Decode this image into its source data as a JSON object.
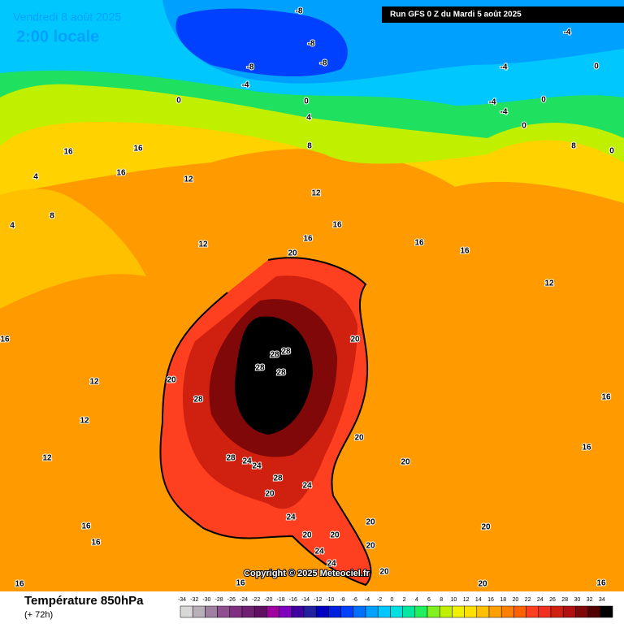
{
  "header": {
    "date": "Vendredi 8 août 2025",
    "time": "2:00 locale",
    "run": "Run GFS 0 Z du Mardi 5 août 2025"
  },
  "copyright": "Copyright © 2025 Meteociel.fr",
  "legend": {
    "title": "Température 850hPa",
    "subtitle": "(+ 72h)",
    "ticks": [
      -34,
      -32,
      -30,
      -28,
      -26,
      -24,
      -22,
      -20,
      -18,
      -16,
      -14,
      -12,
      -10,
      -8,
      -6,
      -4,
      -2,
      0,
      2,
      4,
      6,
      8,
      10,
      12,
      14,
      16,
      18,
      20,
      22,
      24,
      26,
      28,
      30,
      32,
      34
    ],
    "colors": [
      "#d8d8d8",
      "#b8b0b8",
      "#a080a0",
      "#905090",
      "#803080",
      "#702070",
      "#601060",
      "#a000a0",
      "#8000c0",
      "#4000a0",
      "#2020a0",
      "#0000c0",
      "#0020e0",
      "#0040ff",
      "#0070ff",
      "#00a0ff",
      "#00c8ff",
      "#00e0e0",
      "#00e8a0",
      "#20f060",
      "#80f020",
      "#c0f000",
      "#f0f000",
      "#ffe000",
      "#ffc000",
      "#ffa000",
      "#ff8000",
      "#ff6000",
      "#ff4020",
      "#f03020",
      "#d02010",
      "#b01010",
      "#800808",
      "#500000",
      "#000000"
    ]
  },
  "map": {
    "labels": [
      -8,
      -8,
      -8,
      -8,
      -4,
      -4,
      -4,
      -4,
      -4,
      0,
      0,
      0,
      0,
      0,
      0,
      4,
      4,
      4,
      8,
      8,
      8,
      12,
      12,
      12,
      12,
      12,
      12,
      12,
      16,
      16,
      16,
      16,
      16,
      16,
      16,
      16,
      16,
      16,
      16,
      16,
      16,
      16,
      16,
      20,
      20,
      20,
      20,
      20,
      20,
      20,
      20,
      20,
      20,
      20,
      20,
      28,
      28,
      28,
      28,
      28,
      28,
      28,
      24,
      24,
      24,
      24,
      24,
      24,
      20
    ]
  }
}
